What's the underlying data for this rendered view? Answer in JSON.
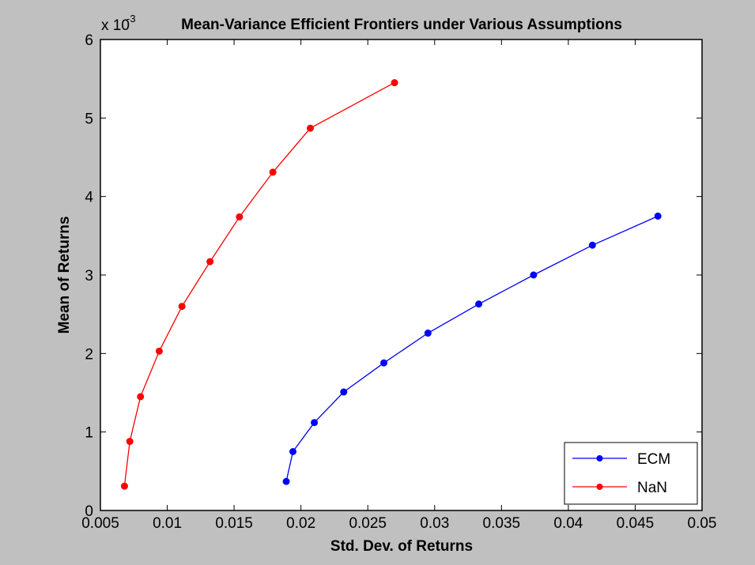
{
  "chart_data": {
    "type": "line",
    "title": "Mean-Variance Efficient Frontiers under Various Assumptions",
    "xlabel": "Std. Dev. of Returns",
    "ylabel": "Mean of Returns",
    "y_exponent_label": "x 10",
    "y_exponent": "-3",
    "xlim": [
      0.005,
      0.05
    ],
    "ylim": [
      0,
      6
    ],
    "xticks": [
      "0.005",
      "0.01",
      "0.015",
      "0.02",
      "0.025",
      "0.03",
      "0.035",
      "0.04",
      "0.045",
      "0.05"
    ],
    "yticks": [
      "0",
      "1",
      "2",
      "3",
      "4",
      "5",
      "6"
    ],
    "grid": false,
    "legend_position": "bottom-right",
    "series": [
      {
        "name": "ECM",
        "color": "#0000ff",
        "points": [
          [
            0.0189,
            0.37
          ],
          [
            0.0194,
            0.75
          ],
          [
            0.021,
            1.12
          ],
          [
            0.0232,
            1.51
          ],
          [
            0.0262,
            1.88
          ],
          [
            0.0295,
            2.26
          ],
          [
            0.0333,
            2.63
          ],
          [
            0.0374,
            3.0
          ],
          [
            0.0418,
            3.38
          ],
          [
            0.0467,
            3.75
          ]
        ]
      },
      {
        "name": "NaN",
        "color": "#ff0000",
        "points": [
          [
            0.0068,
            0.31
          ],
          [
            0.0072,
            0.88
          ],
          [
            0.008,
            1.45
          ],
          [
            0.0094,
            2.03
          ],
          [
            0.0111,
            2.6
          ],
          [
            0.0132,
            3.17
          ],
          [
            0.0154,
            3.74
          ],
          [
            0.0179,
            4.31
          ],
          [
            0.0207,
            4.87
          ],
          [
            0.027,
            5.45
          ]
        ]
      }
    ]
  }
}
